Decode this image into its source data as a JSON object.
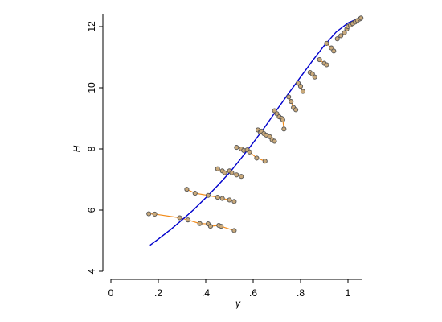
{
  "chart_data": {
    "type": "scatter",
    "title": "",
    "xlabel": "γ",
    "ylabel": "H",
    "xlim": [
      0,
      1.06
    ],
    "ylim": [
      4,
      12.4
    ],
    "xticks": [
      {
        "value": 0,
        "label": "0"
      },
      {
        "value": 0.2,
        "label": ".2"
      },
      {
        "value": 0.4,
        "label": ".4"
      },
      {
        "value": 0.6,
        "label": ".6"
      },
      {
        "value": 0.8,
        "label": ".8"
      },
      {
        "value": 1.0,
        "label": "1"
      }
    ],
    "yticks": [
      {
        "value": 4,
        "label": "4"
      },
      {
        "value": 6,
        "label": "6"
      },
      {
        "value": 8,
        "label": "8"
      },
      {
        "value": 10,
        "label": "10"
      },
      {
        "value": 12,
        "label": "12"
      }
    ],
    "grid": false,
    "legend": "none",
    "colors": {
      "curve": "#0000cc",
      "segments": "#f28c1c",
      "point_fill": "#c9a97a",
      "point_stroke": "#555555"
    },
    "curve": {
      "x": [
        0.165,
        0.2,
        0.25,
        0.3,
        0.35,
        0.4,
        0.45,
        0.5,
        0.55,
        0.6,
        0.65,
        0.7,
        0.75,
        0.8,
        0.85,
        0.9,
        0.95,
        1.0,
        1.03,
        1.055
      ],
      "y": [
        4.85,
        5.05,
        5.35,
        5.68,
        6.02,
        6.4,
        6.8,
        7.22,
        7.7,
        8.2,
        8.72,
        9.28,
        9.82,
        10.35,
        10.88,
        11.38,
        11.82,
        12.12,
        12.22,
        12.3
      ]
    },
    "groups": [
      {
        "x": [
          0.16,
          0.185,
          0.29,
          0.325,
          0.375,
          0.41,
          0.42,
          0.455,
          0.465,
          0.52
        ],
        "y": [
          5.88,
          5.87,
          5.75,
          5.68,
          5.56,
          5.55,
          5.47,
          5.5,
          5.47,
          5.33
        ]
      },
      {
        "x": [
          0.32,
          0.355,
          0.41,
          0.45,
          0.47,
          0.5,
          0.52
        ],
        "y": [
          6.68,
          6.55,
          6.48,
          6.42,
          6.38,
          6.33,
          6.28
        ]
      },
      {
        "x": [
          0.45,
          0.47,
          0.48,
          0.5,
          0.51,
          0.53,
          0.55
        ],
        "y": [
          7.35,
          7.28,
          7.22,
          7.28,
          7.22,
          7.15,
          7.1
        ]
      },
      {
        "x": [
          0.53,
          0.55,
          0.56,
          0.575,
          0.585,
          0.615,
          0.65
        ],
        "y": [
          8.05,
          8.0,
          7.95,
          7.97,
          7.9,
          7.7,
          7.6
        ]
      },
      {
        "x": [
          0.62,
          0.63,
          0.635,
          0.645,
          0.655,
          0.67,
          0.68,
          0.69
        ],
        "y": [
          8.62,
          8.55,
          8.58,
          8.5,
          8.45,
          8.4,
          8.3,
          8.25
        ]
      },
      {
        "x": [
          0.69,
          0.7,
          0.71,
          0.72,
          0.725,
          0.73
        ],
        "y": [
          9.25,
          9.15,
          9.05,
          9.0,
          8.95,
          8.65
        ]
      },
      {
        "x": [
          0.75,
          0.76,
          0.77,
          0.78
        ],
        "y": [
          9.7,
          9.55,
          9.35,
          9.28
        ]
      },
      {
        "x": [
          0.79,
          0.8,
          0.81
        ],
        "y": [
          10.15,
          10.05,
          9.88
        ]
      },
      {
        "x": [
          0.84,
          0.85,
          0.86
        ],
        "y": [
          10.5,
          10.45,
          10.35
        ]
      },
      {
        "x": [
          0.88,
          0.9,
          0.91
        ],
        "y": [
          10.92,
          10.8,
          10.75
        ]
      },
      {
        "x": [
          0.91,
          0.93,
          0.94
        ],
        "y": [
          11.45,
          11.3,
          11.2
        ]
      },
      {
        "x": [
          0.955,
          0.97,
          0.985,
          0.995,
          1.0,
          1.01,
          1.02,
          1.03,
          1.04,
          1.05,
          1.055
        ],
        "y": [
          11.6,
          11.7,
          11.8,
          11.92,
          12.0,
          12.05,
          12.1,
          12.15,
          12.2,
          12.25,
          12.28
        ]
      }
    ]
  }
}
